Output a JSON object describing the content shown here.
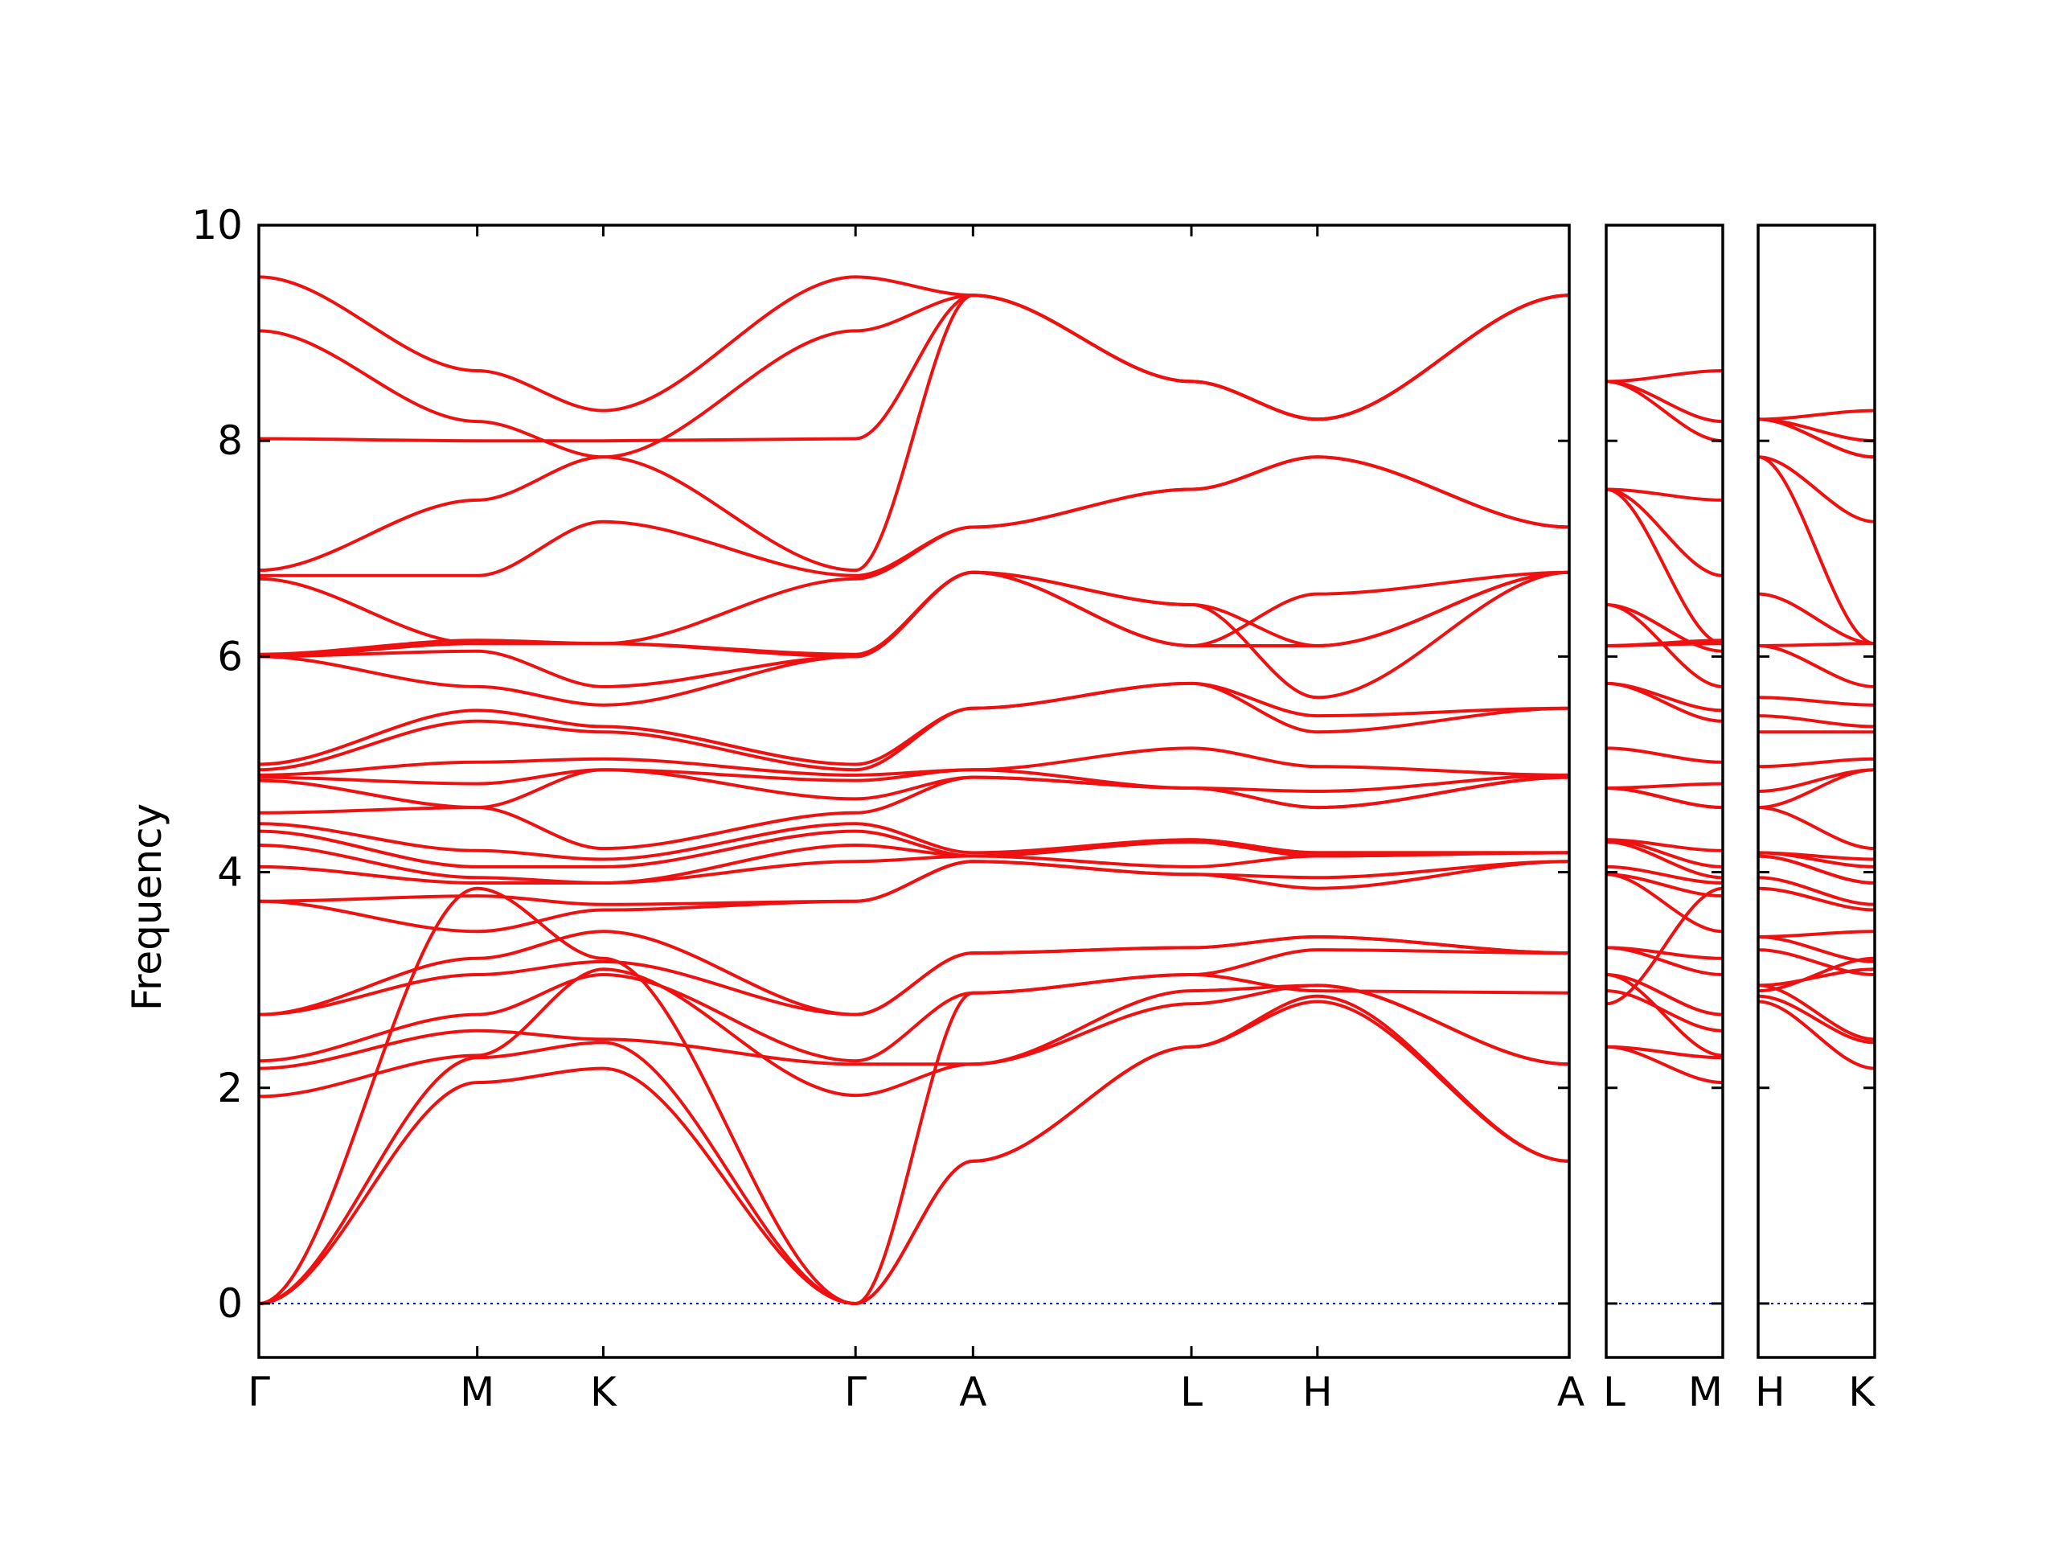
{
  "chart_data": {
    "type": "line",
    "title": "",
    "ylabel": "Frequency",
    "xlabel": "",
    "ylim": [
      -0.5,
      10
    ],
    "yticks": [
      0,
      2,
      4,
      6,
      8,
      10
    ],
    "grid": false,
    "legend": "none",
    "colors": {
      "bands": "#ee1111",
      "zero": "#0000cc",
      "axis": "#000000"
    },
    "panels": [
      {
        "labels": [
          "Γ",
          "M",
          "K",
          "Γ",
          "A",
          "L",
          "H",
          "A"
        ],
        "positions": [
          0,
          1,
          1.577,
          2.732,
          3.27,
          4.27,
          4.847,
          6.0
        ],
        "bands": [
          [
            0,
            2.05,
            2.18,
            0,
            1.32,
            2.38,
            2.8,
            1.32
          ],
          [
            0,
            2.28,
            2.42,
            0,
            1.32,
            2.38,
            2.85,
            1.32
          ],
          [
            0,
            3.85,
            3.2,
            0,
            2.88,
            3.05,
            2.9,
            2.88
          ],
          [
            1.92,
            2.3,
            3.1,
            1.93,
            2.22,
            2.78,
            2.95,
            2.22
          ],
          [
            2.18,
            2.53,
            2.45,
            2.22,
            2.22,
            2.9,
            2.95,
            2.22
          ],
          [
            2.25,
            2.68,
            3.05,
            2.25,
            2.88,
            3.05,
            3.28,
            3.25
          ],
          [
            2.68,
            3.05,
            3.17,
            2.68,
            3.25,
            3.3,
            3.4,
            3.25
          ],
          [
            2.68,
            3.2,
            3.45,
            2.68,
            3.25,
            3.3,
            3.4,
            3.25
          ],
          [
            3.73,
            3.45,
            3.65,
            3.73,
            4.1,
            3.98,
            3.85,
            4.1
          ],
          [
            3.73,
            3.78,
            3.7,
            3.73,
            4.1,
            3.98,
            3.95,
            4.1
          ],
          [
            4.05,
            3.9,
            3.9,
            4.1,
            4.15,
            4.05,
            4.15,
            4.18
          ],
          [
            4.25,
            3.95,
            3.9,
            4.25,
            4.15,
            4.28,
            4.15,
            4.18
          ],
          [
            4.38,
            4.05,
            4.05,
            4.38,
            4.15,
            4.3,
            4.18,
            4.18
          ],
          [
            4.45,
            4.2,
            4.12,
            4.45,
            4.18,
            4.3,
            4.18,
            4.18
          ],
          [
            4.55,
            4.6,
            4.22,
            4.55,
            4.88,
            4.78,
            4.6,
            4.88
          ],
          [
            4.85,
            4.6,
            4.95,
            4.68,
            4.88,
            4.78,
            4.6,
            4.88
          ],
          [
            4.88,
            4.82,
            4.95,
            4.85,
            4.95,
            4.78,
            4.75,
            4.9
          ],
          [
            4.9,
            5.02,
            5.05,
            4.9,
            4.95,
            5.15,
            4.98,
            4.9
          ],
          [
            4.95,
            5.4,
            5.3,
            4.95,
            5.52,
            5.75,
            5.3,
            5.52
          ],
          [
            5.0,
            5.5,
            5.35,
            5.0,
            5.52,
            5.75,
            5.45,
            5.52
          ],
          [
            6.0,
            5.72,
            5.55,
            6.0,
            6.78,
            6.48,
            5.62,
            6.78
          ],
          [
            6.0,
            6.05,
            5.72,
            6.0,
            6.78,
            6.48,
            6.1,
            6.78
          ],
          [
            6.0,
            6.12,
            6.12,
            6.0,
            6.78,
            6.1,
            6.1,
            6.78
          ],
          [
            6.02,
            6.15,
            6.12,
            6.02,
            6.78,
            6.1,
            6.58,
            6.78
          ],
          [
            6.72,
            6.12,
            6.12,
            6.72,
            7.2,
            7.55,
            7.85,
            7.2
          ],
          [
            6.75,
            6.75,
            7.25,
            6.75,
            7.2,
            7.55,
            7.85,
            7.2
          ],
          [
            6.8,
            7.45,
            7.85,
            6.8,
            9.35,
            8.55,
            8.2,
            9.35
          ],
          [
            8.02,
            8.0,
            8.0,
            8.02,
            9.35,
            8.55,
            8.2,
            9.35
          ],
          [
            9.02,
            8.18,
            7.85,
            9.02,
            9.35,
            8.55,
            8.2,
            9.35
          ],
          [
            9.52,
            8.65,
            8.28,
            9.52,
            9.35,
            8.55,
            8.2,
            9.35
          ]
        ]
      },
      {
        "labels": [
          "L",
          "M"
        ],
        "positions": [
          0,
          1
        ],
        "bands": [
          [
            2.38,
            2.05
          ],
          [
            2.38,
            2.28
          ],
          [
            2.78,
            3.85
          ],
          [
            3.05,
            2.3
          ],
          [
            2.9,
            2.53
          ],
          [
            3.05,
            2.68
          ],
          [
            3.3,
            3.05
          ],
          [
            3.3,
            3.2
          ],
          [
            3.98,
            3.45
          ],
          [
            3.98,
            3.78
          ],
          [
            4.05,
            3.9
          ],
          [
            4.28,
            3.95
          ],
          [
            4.3,
            4.05
          ],
          [
            4.3,
            4.2
          ],
          [
            4.78,
            4.6
          ],
          [
            4.78,
            4.6
          ],
          [
            4.78,
            4.82
          ],
          [
            5.15,
            5.02
          ],
          [
            5.75,
            5.4
          ],
          [
            5.75,
            5.5
          ],
          [
            6.48,
            5.72
          ],
          [
            6.48,
            6.05
          ],
          [
            6.1,
            6.12
          ],
          [
            6.1,
            6.15
          ],
          [
            7.55,
            6.12
          ],
          [
            7.55,
            6.75
          ],
          [
            7.55,
            7.45
          ],
          [
            8.55,
            8.0
          ],
          [
            8.55,
            8.18
          ],
          [
            8.55,
            8.65
          ]
        ]
      },
      {
        "labels": [
          "H",
          "K"
        ],
        "positions": [
          0,
          1
        ],
        "bands": [
          [
            2.8,
            2.18
          ],
          [
            2.85,
            2.42
          ],
          [
            2.9,
            3.2
          ],
          [
            2.95,
            3.1
          ],
          [
            2.95,
            2.45
          ],
          [
            3.28,
            3.05
          ],
          [
            3.4,
            3.17
          ],
          [
            3.4,
            3.45
          ],
          [
            3.85,
            3.65
          ],
          [
            3.95,
            3.7
          ],
          [
            4.15,
            3.9
          ],
          [
            4.15,
            3.9
          ],
          [
            4.18,
            4.05
          ],
          [
            4.18,
            4.12
          ],
          [
            4.6,
            4.22
          ],
          [
            4.6,
            4.95
          ],
          [
            4.75,
            4.95
          ],
          [
            4.98,
            5.05
          ],
          [
            5.3,
            5.3
          ],
          [
            5.45,
            5.35
          ],
          [
            5.62,
            5.55
          ],
          [
            6.1,
            5.72
          ],
          [
            6.1,
            6.12
          ],
          [
            6.58,
            6.12
          ],
          [
            7.85,
            6.12
          ],
          [
            7.85,
            7.25
          ],
          [
            8.2,
            7.85
          ],
          [
            8.2,
            8.0
          ],
          [
            8.2,
            7.85
          ],
          [
            8.2,
            8.28
          ]
        ]
      }
    ]
  }
}
